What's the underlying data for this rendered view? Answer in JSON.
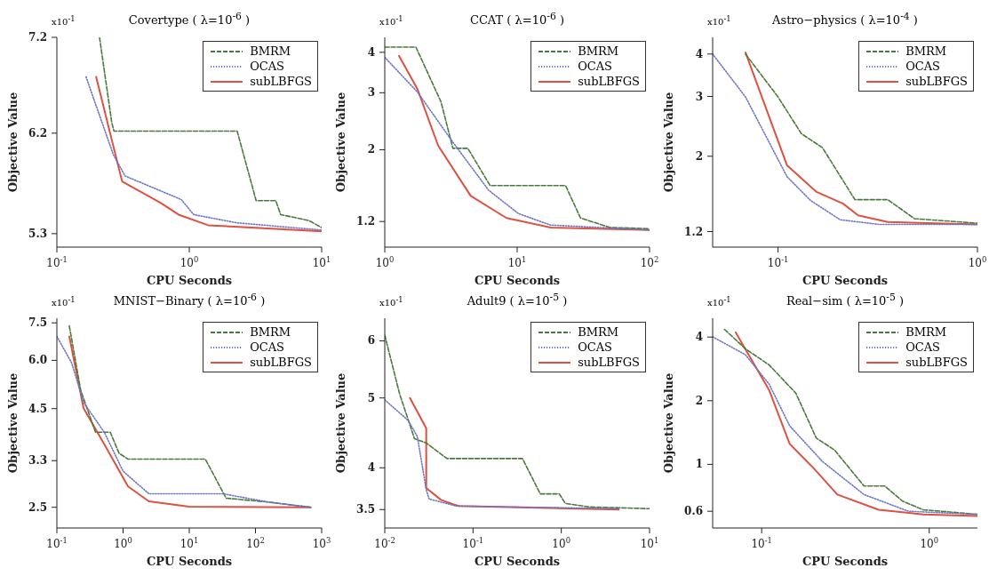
{
  "chart_data": [
    {
      "type": "line",
      "title": "Covertype ( λ=10$^{-6}$ )",
      "xlabel": "CPU Seconds",
      "ylabel": "Objective Value",
      "annotations": [
        "x10$^{-1}$"
      ],
      "log": "xy",
      "legend": "top right",
      "xlim": [
        0.1,
        10
      ],
      "xticks": [
        {
          "value": 0.1,
          "label": "10$^{-1}$"
        },
        {
          "value": 1,
          "label": "10$^{0}$"
        },
        {
          "value": 10,
          "label": "10$^{1}$"
        }
      ],
      "ylim": [
        5.19,
        7.2
      ],
      "yticks": [
        5.3,
        6.2,
        7.2
      ],
      "series": [
        {
          "name": "BMRM",
          "color": "#4a7a3a",
          "line_style": "dashed",
          "x": [
            0.21,
            0.26,
            0.27,
            2.3,
            3.2,
            4.5,
            4.9,
            8,
            10
          ],
          "values": [
            7.2,
            6.3,
            6.22,
            6.22,
            5.58,
            5.58,
            5.46,
            5.41,
            5.35
          ]
        },
        {
          "name": "OCAS",
          "color": "#6b74c8",
          "line_style": "dotted",
          "x": [
            0.166,
            0.266,
            0.327,
            0.87,
            1.08,
            2.3,
            10
          ],
          "values": [
            6.77,
            6.0,
            5.8,
            5.59,
            5.46,
            5.39,
            5.33
          ]
        },
        {
          "name": "subLBFGS",
          "color": "#e05040",
          "line_style": "solid",
          "x": [
            0.198,
            0.311,
            0.61,
            0.83,
            1.39,
            10
          ],
          "values": [
            6.77,
            5.75,
            5.56,
            5.46,
            5.37,
            5.32
          ]
        }
      ]
    },
    {
      "type": "line",
      "title": "CCAT ( λ=10$^{-6}$ )",
      "xlabel": "CPU Seconds",
      "ylabel": "Objective Value",
      "annotations": [
        "x10$^{-1}$"
      ],
      "log": "xy",
      "legend": "top right",
      "xlim": [
        1,
        100
      ],
      "xticks": [
        {
          "value": 1,
          "label": "10$^{0}$"
        },
        {
          "value": 10,
          "label": "10$^{1}$"
        },
        {
          "value": 100,
          "label": "10$^{2}$"
        }
      ],
      "ylim": [
        1.0,
        4.45
      ],
      "yticks": [
        1.2,
        2,
        3,
        4
      ],
      "series": [
        {
          "name": "BMRM",
          "color": "#4a7a3a",
          "line_style": "dashed",
          "x": [
            1,
            1.72,
            2.66,
            3.27,
            4.24,
            6.24,
            23.2,
            30.1,
            50.4,
            100
          ],
          "values": [
            4.15,
            4.15,
            2.81,
            2.02,
            2.02,
            1.55,
            1.55,
            1.23,
            1.15,
            1.14
          ]
        },
        {
          "name": "OCAS",
          "color": "#6b74c8",
          "line_style": "dotted",
          "x": [
            1,
            1.76,
            3.27,
            6.08,
            10.2,
            17.9,
            100
          ],
          "values": [
            3.86,
            3.02,
            2.11,
            1.5,
            1.27,
            1.17,
            1.13
          ]
        },
        {
          "name": "subLBFGS",
          "color": "#e05040",
          "line_style": "solid",
          "x": [
            1.28,
            1.76,
            2.53,
            4.46,
            8.3,
            17.9,
            100
          ],
          "values": [
            3.9,
            3.09,
            2.06,
            1.44,
            1.23,
            1.15,
            1.13
          ]
        }
      ]
    },
    {
      "type": "line",
      "title": "Astro−physics ( λ=10$^{-4}$ )",
      "xlabel": "CPU Seconds",
      "ylabel": "Objective Value",
      "annotations": [
        "x10$^{-1}$"
      ],
      "log": "xy",
      "legend": "top right",
      "xlim": [
        0.047,
        1
      ],
      "xticks": [
        {
          "value": 0.1,
          "label": "10$^{-1}$"
        },
        {
          "value": 1,
          "label": "10$^{0}$"
        }
      ],
      "ylim": [
        1.08,
        4.48
      ],
      "yticks": [
        1.2,
        2,
        3,
        4
      ],
      "series": [
        {
          "name": "BMRM",
          "color": "#4a7a3a",
          "line_style": "dashed",
          "x": [
            0.0687,
            0.1,
            0.131,
            0.167,
            0.243,
            0.355,
            0.483,
            1
          ],
          "values": [
            4.0,
            2.99,
            2.33,
            2.12,
            1.49,
            1.49,
            1.31,
            1.27
          ]
        },
        {
          "name": "OCAS",
          "color": "#6b74c8",
          "line_style": "dotted",
          "x": [
            0.047,
            0.0687,
            0.111,
            0.146,
            0.205,
            0.32,
            1
          ],
          "values": [
            4.0,
            2.99,
            1.74,
            1.48,
            1.3,
            1.26,
            1.26
          ]
        },
        {
          "name": "subLBFGS",
          "color": "#e05040",
          "line_style": "solid",
          "x": [
            0.0687,
            0.111,
            0.156,
            0.212,
            0.252,
            0.355,
            1
          ],
          "values": [
            4.04,
            1.88,
            1.57,
            1.45,
            1.34,
            1.28,
            1.26
          ]
        }
      ]
    },
    {
      "type": "line",
      "title": "MNIST−Binary ( λ=10$^{-6}$ )",
      "xlabel": "CPU Seconds",
      "ylabel": "Objective Value",
      "annotations": [
        "x10$^{-1}$"
      ],
      "log": "xy",
      "legend": "top right",
      "xlim": [
        0.1,
        1000
      ],
      "xticks": [
        {
          "value": 0.1,
          "label": "10$^{-1}$"
        },
        {
          "value": 1,
          "label": "10$^{0}$"
        },
        {
          "value": 10,
          "label": "10$^{1}$"
        },
        {
          "value": 100,
          "label": "10$^{2}$"
        },
        {
          "value": 1000,
          "label": "10$^{3}$"
        }
      ],
      "ylim": [
        2.21,
        7.71
      ],
      "yticks": [
        2.5,
        3.3,
        4.5,
        {
          "value": 6,
          "label": "6.0"
        },
        7.5
      ],
      "series": [
        {
          "name": "BMRM",
          "color": "#4a7a3a",
          "line_style": "dashed",
          "x": [
            0.154,
            0.229,
            0.383,
            0.64,
            0.87,
            1.19,
            17.5,
            36,
            153,
            683
          ],
          "values": [
            7.37,
            5.02,
            3.91,
            3.91,
            3.45,
            3.33,
            3.33,
            2.64,
            2.58,
            2.5
          ]
        },
        {
          "name": "OCAS",
          "color": "#6b74c8",
          "line_style": "dotted",
          "x": [
            0.1,
            0.168,
            0.253,
            0.52,
            1.0,
            2.45,
            32.4,
            153,
            683
          ],
          "values": [
            6.92,
            5.9,
            4.67,
            3.91,
            3.1,
            2.71,
            2.71,
            2.58,
            2.5
          ]
        },
        {
          "name": "subLBFGS",
          "color": "#e05040",
          "line_style": "solid",
          "x": [
            0.154,
            0.253,
            0.52,
            1.19,
            2.45,
            10,
            683
          ],
          "values": [
            6.92,
            4.51,
            3.64,
            2.83,
            2.59,
            2.51,
            2.5
          ]
        }
      ]
    },
    {
      "type": "line",
      "title": "Adult9 ( λ=10$^{-5}$ )",
      "xlabel": "CPU Seconds",
      "ylabel": "Objective Value",
      "annotations": [
        "x10$^{-1}$"
      ],
      "log": "xy",
      "legend": "top right",
      "xlim": [
        0.01,
        10
      ],
      "xticks": [
        {
          "value": 0.01,
          "label": "10$^{-2}$"
        },
        {
          "value": 0.1,
          "label": "10$^{-1}$"
        },
        {
          "value": 1,
          "label": "10$^{0}$"
        },
        {
          "value": 10,
          "label": "10$^{1}$"
        }
      ],
      "ylim": [
        3.3,
        6.45
      ],
      "yticks": [
        3.5,
        4,
        5,
        6
      ],
      "series": [
        {
          "name": "BMRM",
          "color": "#4a7a3a",
          "line_style": "dashed",
          "x": [
            0.01,
            0.0147,
            0.0217,
            0.0295,
            0.0507,
            0.363,
            0.578,
            0.95,
            1.11,
            2.07,
            10
          ],
          "values": [
            6.11,
            5.07,
            4.39,
            4.33,
            4.12,
            4.12,
            3.68,
            3.68,
            3.57,
            3.53,
            3.51
          ]
        },
        {
          "name": "OCAS",
          "color": "#6b74c8",
          "line_style": "dotted",
          "x": [
            0.01,
            0.0185,
            0.0234,
            0.0295,
            0.0318,
            0.0547,
            0.064,
            4.48
          ],
          "values": [
            4.97,
            4.65,
            4.42,
            3.73,
            3.62,
            3.56,
            3.54,
            3.51
          ]
        },
        {
          "name": "subLBFGS",
          "color": "#e05040",
          "line_style": "solid",
          "x": [
            0.0193,
            0.0295,
            0.0295,
            0.0434,
            0.0592,
            0.069,
            4.48
          ],
          "values": [
            5.0,
            4.54,
            3.75,
            3.61,
            3.56,
            3.54,
            3.5
          ]
        }
      ]
    },
    {
      "type": "line",
      "title": "Real−sim ( λ=10$^{-5}$ )",
      "xlabel": "CPU Seconds",
      "ylabel": "Objective Value",
      "annotations": [
        "x10$^{-1}$"
      ],
      "log": "xy",
      "legend": "top right",
      "xlim": [
        0.051,
        1.94
      ],
      "xticks": [
        {
          "value": 0.1,
          "label": "10$^{-1}$"
        },
        {
          "value": 1,
          "label": "10$^{0}$"
        }
      ],
      "ylim": [
        0.5,
        4.91
      ],
      "yticks": [
        0.6,
        1,
        2,
        4
      ],
      "series": [
        {
          "name": "BMRM",
          "color": "#4a7a3a",
          "line_style": "dashed",
          "x": [
            0.06,
            0.08,
            0.111,
            0.16,
            0.212,
            0.272,
            0.408,
            0.543,
            0.693,
            0.92,
            1.94
          ],
          "values": [
            4.35,
            3.52,
            2.95,
            2.17,
            1.33,
            1.17,
            0.79,
            0.79,
            0.67,
            0.61,
            0.58
          ]
        },
        {
          "name": "OCAS",
          "color": "#6b74c8",
          "line_style": "dotted",
          "x": [
            0.051,
            0.08,
            0.111,
            0.147,
            0.231,
            0.408,
            0.752,
            1.94
          ],
          "values": [
            4.01,
            3.3,
            2.39,
            1.52,
            1.03,
            0.72,
            0.6,
            0.58
          ]
        },
        {
          "name": "subLBFGS",
          "color": "#e05040",
          "line_style": "solid",
          "x": [
            0.07,
            0.111,
            0.147,
            0.204,
            0.283,
            0.5,
            0.92,
            1.94
          ],
          "values": [
            4.21,
            2.24,
            1.25,
            0.96,
            0.72,
            0.61,
            0.58,
            0.57
          ]
        }
      ]
    }
  ]
}
